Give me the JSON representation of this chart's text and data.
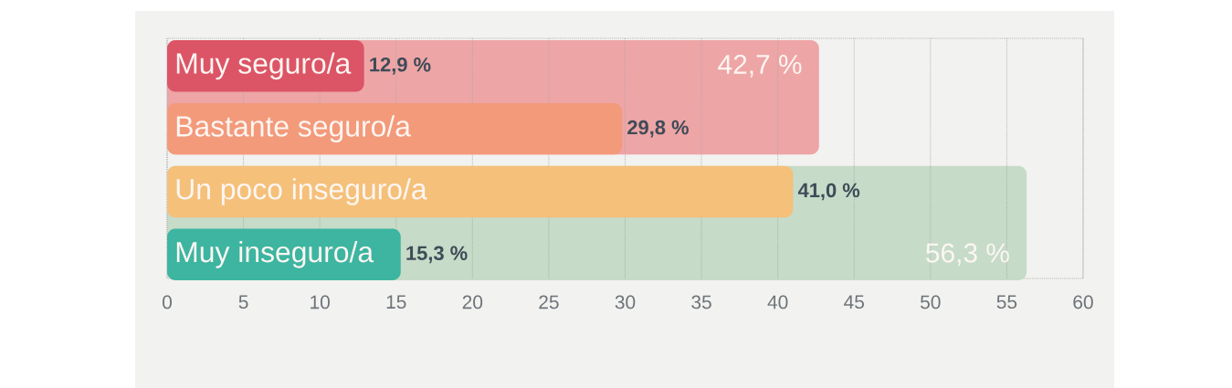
{
  "chart_data": {
    "type": "bar",
    "orientation": "horizontal",
    "categories": [
      "Muy seguro/a",
      "Bastante seguro/a",
      "Un poco inseguro/a",
      "Muy inseguro/a"
    ],
    "series": [
      {
        "values": [
          42.7,
          null,
          56.3,
          null
        ],
        "colors": [
          "#eea5a6",
          null,
          "#c6dbc8",
          null
        ],
        "value_labels": [
          "42,7 %",
          null,
          "56,3 %",
          null
        ]
      },
      {
        "values": [
          12.9,
          29.8,
          41.0,
          15.3
        ],
        "colors": [
          "#dc5566",
          "#f39a7b",
          "#f5c07a",
          "#3db5a0"
        ],
        "value_labels": [
          "12,9 %",
          "29,8 %",
          "41,0 %",
          "15,3 %"
        ]
      }
    ],
    "xlim": [
      0,
      60
    ],
    "xticks": [
      0,
      5,
      10,
      15,
      20,
      25,
      30,
      35,
      40,
      45,
      50,
      55,
      60
    ],
    "grid": "x"
  }
}
